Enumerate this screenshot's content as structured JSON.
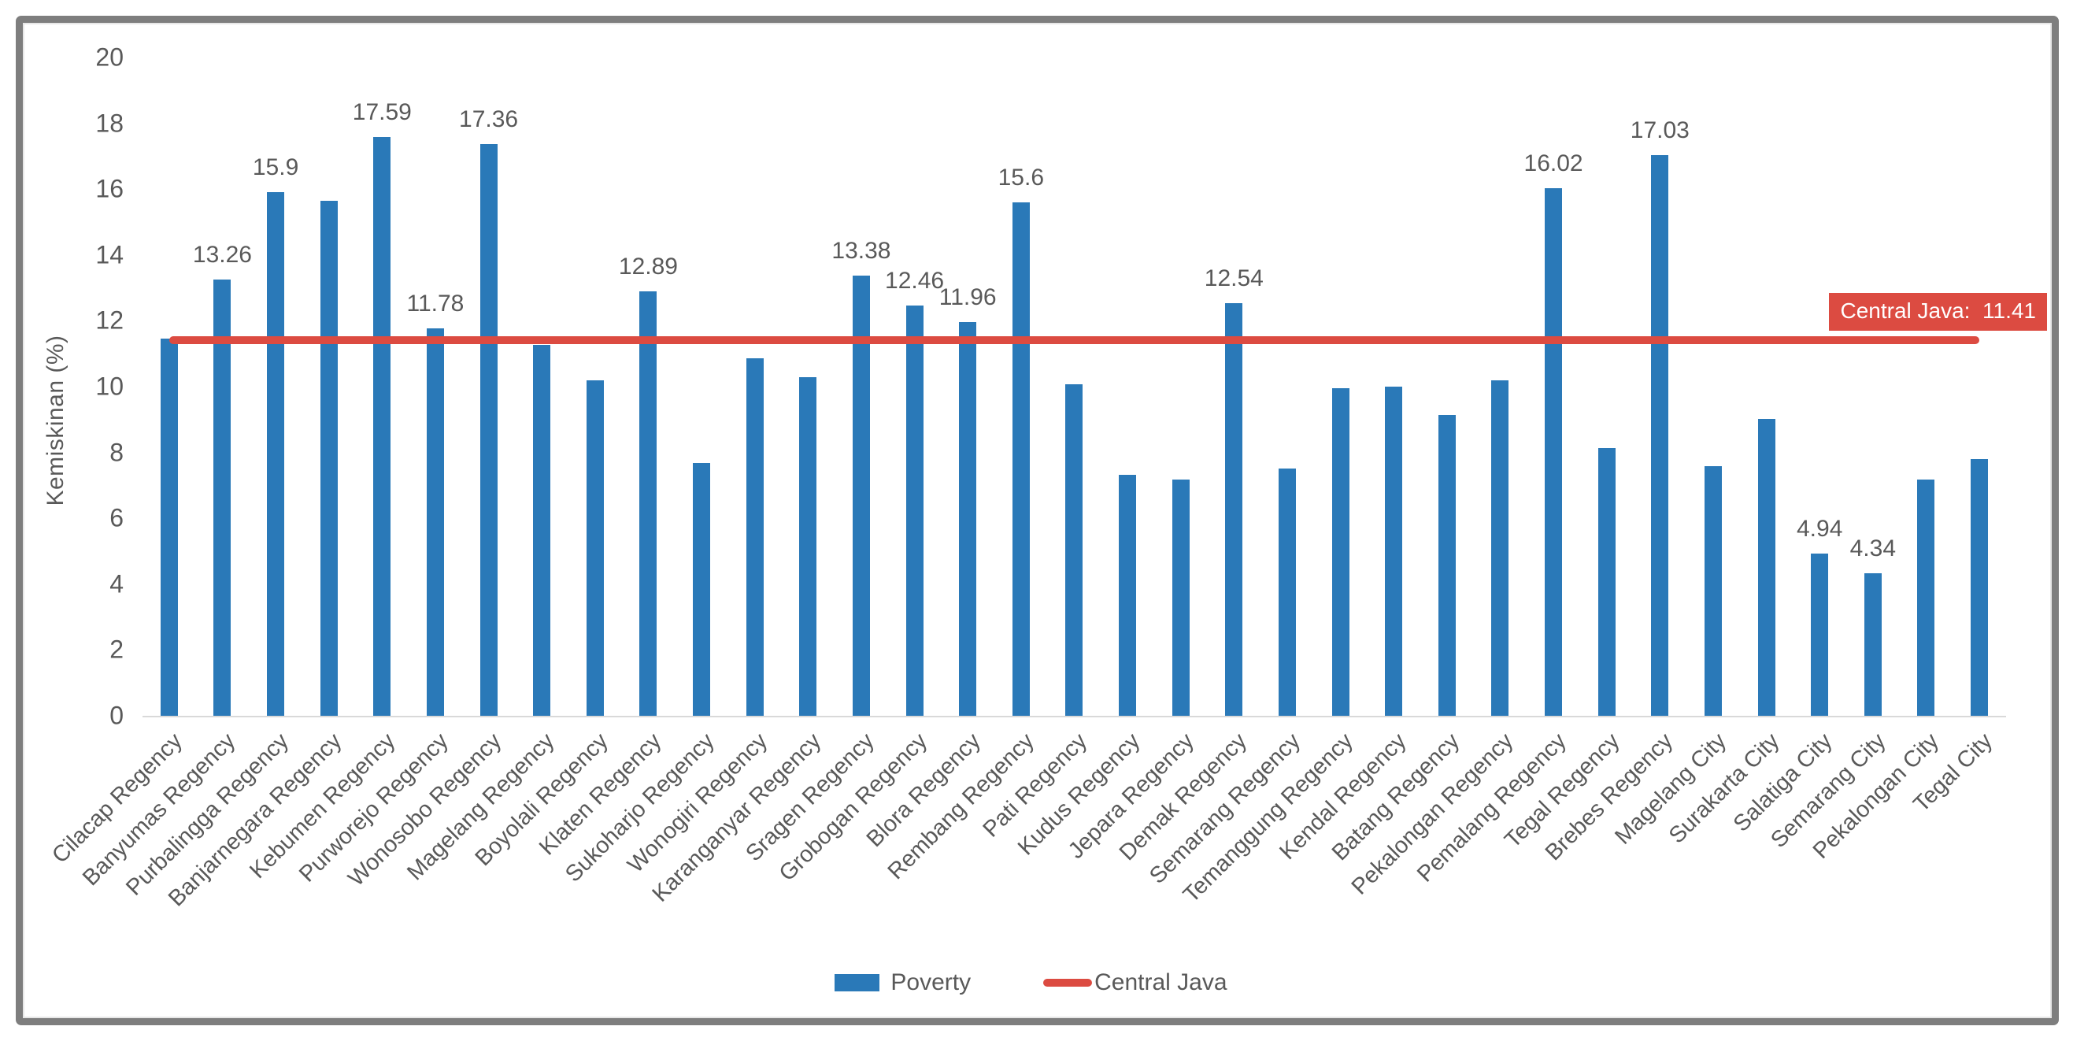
{
  "chart_data": {
    "type": "bar",
    "title": "",
    "xlabel": "",
    "ylabel": "Kemiskinan (%)",
    "ylim": [
      0,
      20
    ],
    "yticks": [
      0,
      2,
      4,
      6,
      8,
      10,
      12,
      14,
      16,
      18,
      20
    ],
    "grid": false,
    "legend_position": "bottom",
    "categories": [
      "Cilacap Regency",
      "Banyumas Regency",
      "Purbalingga Regency",
      "Banjarnegara Regency",
      "Kebumen Regency",
      "Purworejo Regency",
      "Wonosobo Regency",
      "Magelang Regency",
      "Boyolali Regency",
      "Klaten Regency",
      "Sukoharjo Regency",
      "Wonogiri Regency",
      "Karanganyar Regency",
      "Sragen Regency",
      "Grobogan Regency",
      "Blora Regency",
      "Rembang Regency",
      "Pati Regency",
      "Kudus Regency",
      "Jepara Regency",
      "Demak Regency",
      "Semarang Regency",
      "Temanggung Regency",
      "Kendal Regency",
      "Batang Regency",
      "Pekalongan Regency",
      "Pemalang Regency",
      "Tegal Regency",
      "Brebes Regency",
      "Magelang City",
      "Surakarta City",
      "Salatiga City",
      "Semarang City",
      "Pekalongan City",
      "Tegal City"
    ],
    "series": [
      {
        "name": "Poverty",
        "type": "bar",
        "color": "#2a79b8",
        "values": [
          11.46,
          13.26,
          15.9,
          15.64,
          17.59,
          11.78,
          17.36,
          11.27,
          10.18,
          12.89,
          7.68,
          10.86,
          10.28,
          13.38,
          12.46,
          11.96,
          15.6,
          10.08,
          7.31,
          7.17,
          12.54,
          7.51,
          9.96,
          9.99,
          9.13,
          10.19,
          16.02,
          8.14,
          17.03,
          7.58,
          9.03,
          4.94,
          4.34,
          7.17,
          7.8
        ],
        "data_labels": [
          null,
          "13.26",
          "15.9",
          null,
          "17.59",
          "11.78",
          "17.36",
          null,
          null,
          "12.89",
          null,
          null,
          null,
          "13.38",
          "12.46",
          "11.96",
          "15.6",
          null,
          null,
          null,
          "12.54",
          null,
          null,
          null,
          null,
          null,
          "16.02",
          null,
          "17.03",
          null,
          null,
          "4.94",
          "4.34",
          null,
          null
        ]
      },
      {
        "name": "Central Java",
        "type": "line",
        "color": "#dc4b41",
        "value": 11.41
      }
    ],
    "annotation": {
      "text": "Central Java:  11.41",
      "bg": "#dc4b41",
      "text_color": "#ffffff"
    }
  },
  "legend": {
    "items": [
      {
        "label": "Poverty"
      },
      {
        "label": "Central Java"
      }
    ]
  },
  "frame": {
    "border_color": "#7e7e7e"
  }
}
